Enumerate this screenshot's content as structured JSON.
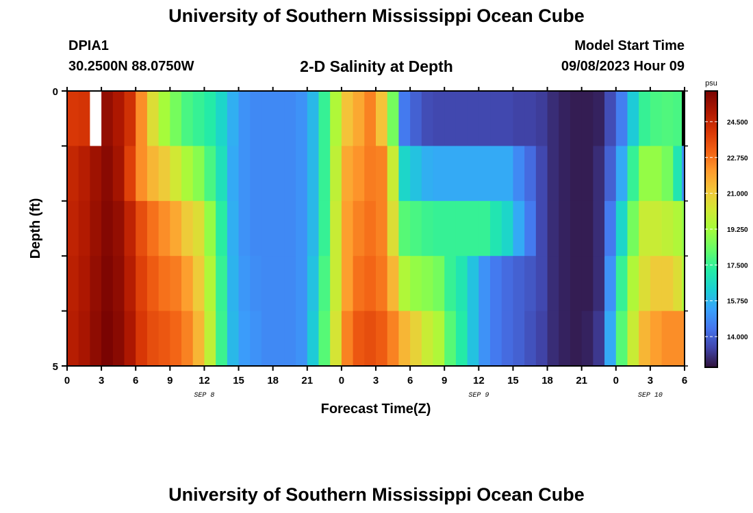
{
  "header": {
    "title": "University of Southern Mississippi Ocean Cube",
    "station_id": "DPIA1",
    "station_coords": "30.2500N  88.0750W",
    "chart_title": "2-D Salinity at Depth",
    "model_start_label": "Model Start Time",
    "model_start_value": "09/08/2023 Hour 09"
  },
  "footer": {
    "title": "University of Southern Mississippi Ocean Cube"
  },
  "chart_data": {
    "type": "heatmap",
    "title": "2-D Salinity at Depth",
    "xlabel": "Forecast Time(Z)",
    "ylabel": "Depth (ft)",
    "x_hours": [
      0,
      1,
      2,
      3,
      4,
      5,
      6,
      7,
      8,
      9,
      10,
      11,
      12,
      13,
      14,
      15,
      16,
      17,
      18,
      19,
      20,
      21,
      22,
      23,
      24,
      25,
      26,
      27,
      28,
      29,
      30,
      31,
      32,
      33,
      34,
      35,
      36,
      37,
      38,
      39,
      40,
      41,
      42,
      43,
      44,
      45,
      46,
      47,
      48,
      49,
      50,
      51,
      52,
      53,
      54
    ],
    "x_range": [
      0,
      54
    ],
    "x_tick_labels": [
      "0",
      "3",
      "6",
      "9",
      "12",
      "15",
      "18",
      "21",
      "0",
      "3",
      "6",
      "9",
      "12",
      "15",
      "18",
      "21",
      "0",
      "3",
      "6"
    ],
    "date_labels": [
      {
        "label": "SEP 8",
        "hour": 12
      },
      {
        "label": "SEP 9",
        "hour": 36
      },
      {
        "label": "SEP 10",
        "hour": 51
      }
    ],
    "y_levels": [
      0,
      1,
      2,
      3,
      4,
      5
    ],
    "y_range": [
      0,
      5
    ],
    "y_tick_labels": [
      "0",
      "5"
    ],
    "colorbar": {
      "unit": "psu",
      "range": [
        12.5,
        26.0
      ],
      "ticks": [
        "24.500",
        "22.750",
        "21.000",
        "19.250",
        "17.500",
        "15.750",
        "14.000"
      ],
      "tick_values": [
        24.5,
        22.75,
        21.0,
        19.25,
        17.5,
        15.75,
        14.0
      ]
    },
    "missing_color": "#ffffff",
    "rows": [
      {
        "depth_layer": "0-1 ft",
        "values": [
          24.0,
          24.1,
          null,
          25.5,
          25.0,
          24.2,
          22.3,
          20.5,
          19.3,
          18.5,
          17.8,
          17.5,
          17.2,
          16.5,
          15.6,
          15.0,
          14.8,
          14.8,
          14.8,
          14.8,
          15.0,
          15.8,
          17.5,
          19.5,
          21.2,
          21.8,
          22.5,
          21.2,
          18.5,
          14.5,
          14.0,
          13.6,
          13.5,
          13.5,
          13.5,
          13.5,
          13.5,
          13.5,
          13.5,
          13.4,
          13.4,
          13.3,
          13.0,
          12.8,
          12.7,
          12.7,
          12.8,
          13.6,
          14.6,
          16.2,
          17.5,
          17.8,
          17.9,
          17.8,
          null
        ]
      },
      {
        "depth_layer": "1-2 ft",
        "values": [
          24.5,
          24.8,
          25.3,
          25.7,
          25.2,
          23.8,
          22.3,
          21.5,
          21.0,
          20.2,
          19.4,
          18.8,
          17.8,
          16.8,
          15.5,
          15.0,
          14.8,
          14.8,
          14.8,
          14.8,
          15.0,
          15.8,
          17.5,
          19.8,
          21.8,
          22.2,
          22.6,
          22.5,
          20.0,
          16.5,
          16.0,
          15.6,
          15.5,
          15.5,
          15.5,
          15.5,
          15.5,
          15.5,
          15.5,
          14.8,
          14.2,
          13.5,
          13.0,
          12.8,
          12.7,
          12.7,
          13.0,
          14.0,
          15.5,
          17.5,
          19.0,
          19.0,
          18.5,
          17.0,
          15.0
        ]
      },
      {
        "depth_layer": "2-3 ft",
        "values": [
          24.6,
          24.9,
          25.4,
          25.8,
          25.5,
          24.6,
          23.5,
          22.8,
          22.3,
          21.8,
          21.0,
          20.5,
          19.0,
          17.3,
          15.6,
          15.0,
          14.8,
          14.8,
          14.8,
          14.8,
          15.0,
          15.8,
          17.5,
          20.0,
          22.0,
          22.5,
          22.8,
          22.5,
          20.5,
          18.0,
          17.8,
          17.6,
          17.5,
          17.5,
          17.5,
          17.5,
          17.5,
          17.0,
          16.5,
          15.5,
          14.5,
          13.5,
          13.0,
          12.8,
          12.7,
          12.7,
          13.0,
          14.5,
          16.5,
          18.5,
          20.0,
          20.0,
          19.8,
          19.5,
          19.0
        ]
      },
      {
        "depth_layer": "3-4 ft",
        "values": [
          24.7,
          25.0,
          25.5,
          25.9,
          25.6,
          24.8,
          23.8,
          23.2,
          22.8,
          22.6,
          22.0,
          21.0,
          19.5,
          17.5,
          15.7,
          15.1,
          14.9,
          14.8,
          14.8,
          14.8,
          15.0,
          16.0,
          17.8,
          20.0,
          22.0,
          22.8,
          23.0,
          22.7,
          21.5,
          19.5,
          19.0,
          18.8,
          18.5,
          17.5,
          17.0,
          16.0,
          15.0,
          14.5,
          14.2,
          14.0,
          13.8,
          13.5,
          13.0,
          12.8,
          12.7,
          12.7,
          13.0,
          15.0,
          17.5,
          19.5,
          20.5,
          21.0,
          21.0,
          20.5,
          19.5
        ]
      },
      {
        "depth_layer": "4-5 ft",
        "values": [
          24.8,
          25.1,
          25.6,
          26.0,
          25.7,
          25.0,
          24.0,
          23.5,
          23.3,
          23.0,
          22.5,
          21.5,
          19.8,
          17.6,
          15.8,
          15.2,
          15.0,
          14.8,
          14.8,
          14.8,
          15.0,
          16.2,
          18.0,
          20.3,
          22.5,
          23.3,
          23.5,
          23.2,
          22.5,
          21.5,
          20.8,
          20.0,
          19.5,
          18.0,
          17.2,
          16.0,
          15.0,
          14.5,
          14.2,
          14.0,
          13.7,
          13.4,
          13.0,
          12.8,
          12.7,
          12.8,
          13.2,
          15.5,
          18.0,
          20.0,
          21.5,
          22.0,
          22.3,
          22.3,
          22.3
        ]
      }
    ]
  }
}
